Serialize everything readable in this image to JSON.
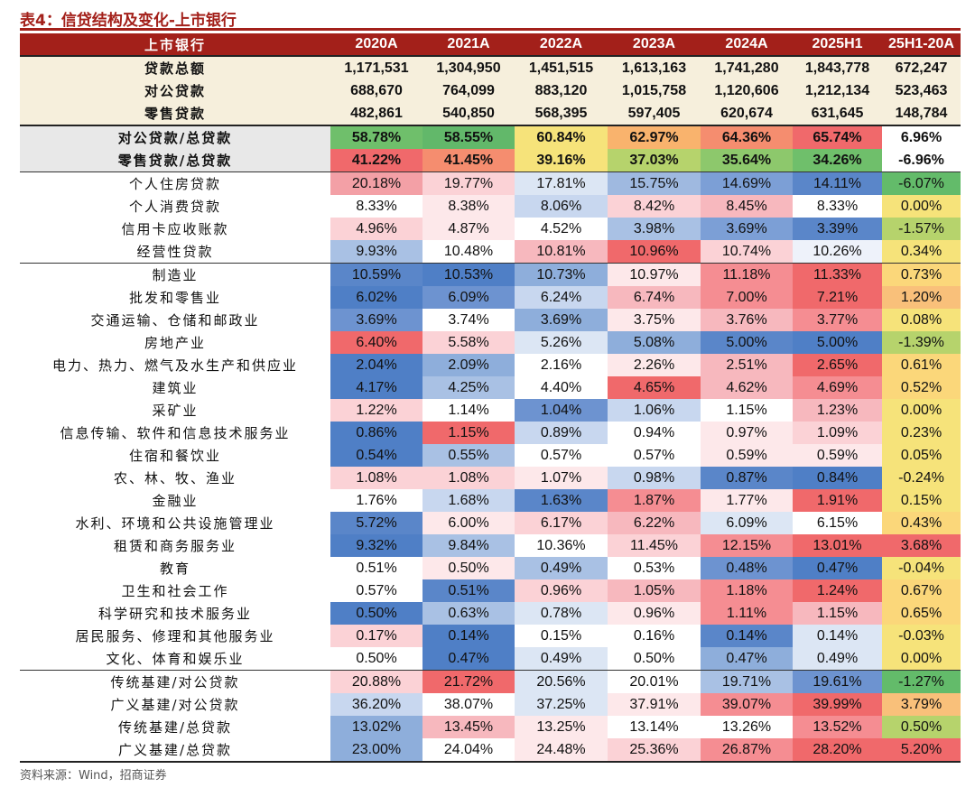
{
  "title": "表4：信贷结构及变化-上市银行",
  "source": "资料来源：Wind，招商证券",
  "columns": [
    "上市银行",
    "2020A",
    "2021A",
    "2022A",
    "2023A",
    "2024A",
    "2025H1",
    "25H1-20A"
  ],
  "colors": {
    "header_bg": "#a3201a",
    "cream": "#f6efdc",
    "label_grey": "#e8e8e8"
  },
  "rows": [
    {
      "label": "贷款总额",
      "group": "cream",
      "values": [
        "1,171,531",
        "1,304,950",
        "1,451,515",
        "1,613,163",
        "1,741,280",
        "1,843,778",
        "672,247"
      ],
      "colors": [
        "#f6efdc",
        "#f6efdc",
        "#f6efdc",
        "#f6efdc",
        "#f6efdc",
        "#f6efdc",
        "#f6efdc"
      ]
    },
    {
      "label": "对公贷款",
      "group": "cream",
      "values": [
        "688,670",
        "764,099",
        "883,120",
        "1,015,758",
        "1,120,606",
        "1,212,134",
        "523,463"
      ],
      "colors": [
        "#f6efdc",
        "#f6efdc",
        "#f6efdc",
        "#f6efdc",
        "#f6efdc",
        "#f6efdc",
        "#f6efdc"
      ]
    },
    {
      "label": "零售贷款",
      "group": "cream",
      "values": [
        "482,861",
        "540,850",
        "568,395",
        "597,405",
        "620,674",
        "631,645",
        "148,784"
      ],
      "colors": [
        "#f6efdc",
        "#f6efdc",
        "#f6efdc",
        "#f6efdc",
        "#f6efdc",
        "#f6efdc",
        "#f6efdc"
      ]
    },
    {
      "label": "对公贷款/总贷款",
      "group": "grey",
      "values": [
        "58.78%",
        "58.55%",
        "60.84%",
        "62.97%",
        "64.36%",
        "65.74%",
        "6.96%"
      ],
      "colors": [
        "#6fbf6b",
        "#62b86a",
        "#f6e37a",
        "#f9b36d",
        "#f58d6f",
        "#f0696b",
        "#ffffff"
      ]
    },
    {
      "label": "零售贷款/总贷款",
      "group": "grey",
      "values": [
        "41.22%",
        "41.45%",
        "39.16%",
        "37.03%",
        "35.64%",
        "34.26%",
        "-6.96%"
      ],
      "colors": [
        "#f0696b",
        "#f58d6f",
        "#f6e37a",
        "#b6d36c",
        "#8dc86c",
        "#6fbf6b",
        "#ffffff"
      ]
    },
    {
      "label": "个人住房贷款",
      "group": "retail",
      "values": [
        "20.18%",
        "19.77%",
        "17.81%",
        "15.75%",
        "14.69%",
        "14.11%",
        "-6.07%"
      ],
      "colors": [
        "#f3a0a6",
        "#fbd2d6",
        "#dce6f4",
        "#9fb9e0",
        "#7c9fd6",
        "#5a86c9",
        "#63bb6a"
      ]
    },
    {
      "label": "个人消费贷款",
      "group": "retail",
      "values": [
        "8.33%",
        "8.38%",
        "8.06%",
        "8.42%",
        "8.45%",
        "8.33%",
        "0.00%"
      ],
      "colors": [
        "#ffffff",
        "#fde8ea",
        "#c8d7ef",
        "#fbd2d6",
        "#f7b8be",
        "#ffffff",
        "#f6e37a"
      ]
    },
    {
      "label": "信用卡应收账款",
      "group": "retail",
      "values": [
        "4.96%",
        "4.87%",
        "4.52%",
        "3.98%",
        "3.69%",
        "3.39%",
        "-1.57%"
      ],
      "colors": [
        "#fbd2d6",
        "#fde8ea",
        "#ffffff",
        "#a9c1e4",
        "#7c9fd6",
        "#5a86c9",
        "#b6d36c"
      ]
    },
    {
      "label": "经营性贷款",
      "group": "retail",
      "values": [
        "9.93%",
        "10.48%",
        "10.81%",
        "10.96%",
        "10.74%",
        "10.26%",
        "0.34%"
      ],
      "colors": [
        "#a9c1e4",
        "#ffffff",
        "#f7b8be",
        "#f0696b",
        "#fbd2d6",
        "#eef2fa",
        "#f6e37a"
      ]
    },
    {
      "label": "制造业",
      "group": "corp",
      "values": [
        "10.59%",
        "10.53%",
        "10.73%",
        "10.97%",
        "11.18%",
        "11.33%",
        "0.73%"
      ],
      "colors": [
        "#5a86c9",
        "#4f7fc6",
        "#8eaedb",
        "#fde8ea",
        "#f58d92",
        "#f0696b",
        "#fbd77a"
      ]
    },
    {
      "label": "批发和零售业",
      "group": "corp",
      "values": [
        "6.02%",
        "6.09%",
        "6.24%",
        "6.74%",
        "7.00%",
        "7.21%",
        "1.20%"
      ],
      "colors": [
        "#4f7fc6",
        "#6d93d0",
        "#c8d7ef",
        "#f7b8be",
        "#f58d92",
        "#f0696b",
        "#f9c07a"
      ]
    },
    {
      "label": "交通运输、仓储和邮政业",
      "group": "corp",
      "values": [
        "3.69%",
        "3.74%",
        "3.69%",
        "3.75%",
        "3.76%",
        "3.77%",
        "0.08%"
      ],
      "colors": [
        "#6d93d0",
        "#ffffff",
        "#8eaedb",
        "#fde8ea",
        "#f7b8be",
        "#f58d92",
        "#f6e37a"
      ]
    },
    {
      "label": "房地产业",
      "group": "corp",
      "values": [
        "6.40%",
        "5.58%",
        "5.26%",
        "5.08%",
        "5.00%",
        "5.00%",
        "-1.39%"
      ],
      "colors": [
        "#f0696b",
        "#fbd2d6",
        "#dce6f4",
        "#8eaedb",
        "#5a86c9",
        "#4f7fc6",
        "#b6d36c"
      ]
    },
    {
      "label": "电力、热力、燃气及水生产和供应业",
      "group": "corp",
      "values": [
        "2.04%",
        "2.09%",
        "2.16%",
        "2.26%",
        "2.51%",
        "2.65%",
        "0.61%"
      ],
      "colors": [
        "#4f7fc6",
        "#8eaedb",
        "#ffffff",
        "#fde8ea",
        "#f7b8be",
        "#f0696b",
        "#fbd77a"
      ]
    },
    {
      "label": "建筑业",
      "group": "corp",
      "values": [
        "4.17%",
        "4.25%",
        "4.40%",
        "4.65%",
        "4.62%",
        "4.69%",
        "0.52%"
      ],
      "colors": [
        "#4f7fc6",
        "#a9c1e4",
        "#ffffff",
        "#f0696b",
        "#f7b8be",
        "#f58d92",
        "#fbd77a"
      ]
    },
    {
      "label": "采矿业",
      "group": "corp",
      "values": [
        "1.22%",
        "1.14%",
        "1.04%",
        "1.06%",
        "1.15%",
        "1.23%",
        "0.00%"
      ],
      "colors": [
        "#fbd2d6",
        "#ffffff",
        "#6d93d0",
        "#c8d7ef",
        "#ffffff",
        "#f7b8be",
        "#f6e37a"
      ]
    },
    {
      "label": "信息传输、软件和信息技术服务业",
      "group": "corp",
      "values": [
        "0.86%",
        "1.15%",
        "0.89%",
        "0.94%",
        "0.97%",
        "1.09%",
        "0.23%"
      ],
      "colors": [
        "#4f7fc6",
        "#f0696b",
        "#c8d7ef",
        "#ffffff",
        "#fde8ea",
        "#fbd2d6",
        "#f6e37a"
      ]
    },
    {
      "label": "住宿和餐饮业",
      "group": "corp",
      "values": [
        "0.54%",
        "0.55%",
        "0.57%",
        "0.57%",
        "0.59%",
        "0.59%",
        "0.05%"
      ],
      "colors": [
        "#4f7fc6",
        "#a9c1e4",
        "#ffffff",
        "#ffffff",
        "#fde8ea",
        "#fde8ea",
        "#f6e37a"
      ]
    },
    {
      "label": "农、林、牧、渔业",
      "group": "corp",
      "values": [
        "1.08%",
        "1.08%",
        "1.07%",
        "0.98%",
        "0.87%",
        "0.84%",
        "-0.24%"
      ],
      "colors": [
        "#fbd2d6",
        "#fbd2d6",
        "#fde8ea",
        "#c8d7ef",
        "#5a86c9",
        "#4f7fc6",
        "#f6e37a"
      ]
    },
    {
      "label": "金融业",
      "group": "corp",
      "values": [
        "1.76%",
        "1.68%",
        "1.63%",
        "1.87%",
        "1.77%",
        "1.91%",
        "0.15%"
      ],
      "colors": [
        "#ffffff",
        "#c8d7ef",
        "#5a86c9",
        "#f58d92",
        "#fde8ea",
        "#f0696b",
        "#f6e37a"
      ]
    },
    {
      "label": "水利、环境和公共设施管理业",
      "group": "corp",
      "values": [
        "5.72%",
        "6.00%",
        "6.17%",
        "6.22%",
        "6.09%",
        "6.15%",
        "0.43%"
      ],
      "colors": [
        "#5a86c9",
        "#fde8ea",
        "#fbd2d6",
        "#f7b8be",
        "#dce6f4",
        "#ffffff",
        "#fbd77a"
      ]
    },
    {
      "label": "租赁和商务服务业",
      "group": "corp",
      "values": [
        "9.32%",
        "9.84%",
        "10.36%",
        "11.45%",
        "12.15%",
        "13.01%",
        "3.68%"
      ],
      "colors": [
        "#4f7fc6",
        "#a9c1e4",
        "#ffffff",
        "#fbd2d6",
        "#f58d92",
        "#f0696b",
        "#f0696b"
      ]
    },
    {
      "label": "教育",
      "group": "corp",
      "values": [
        "0.51%",
        "0.50%",
        "0.49%",
        "0.53%",
        "0.48%",
        "0.47%",
        "-0.04%"
      ],
      "colors": [
        "#ffffff",
        "#fde8ea",
        "#a9c1e4",
        "#ffffff",
        "#6d93d0",
        "#4f7fc6",
        "#f6e37a"
      ]
    },
    {
      "label": "卫生和社会工作",
      "group": "corp",
      "values": [
        "0.57%",
        "0.51%",
        "0.96%",
        "1.05%",
        "1.18%",
        "1.24%",
        "0.67%"
      ],
      "colors": [
        "#ffffff",
        "#5a86c9",
        "#fbd2d6",
        "#f7b8be",
        "#f58d92",
        "#f0696b",
        "#fbd77a"
      ]
    },
    {
      "label": "科学研究和技术服务业",
      "group": "corp",
      "values": [
        "0.50%",
        "0.63%",
        "0.78%",
        "0.96%",
        "1.11%",
        "1.15%",
        "0.65%"
      ],
      "colors": [
        "#4f7fc6",
        "#a9c1e4",
        "#dce6f4",
        "#fde8ea",
        "#f58d92",
        "#f7b8be",
        "#fbd77a"
      ]
    },
    {
      "label": "居民服务、修理和其他服务业",
      "group": "corp",
      "values": [
        "0.17%",
        "0.14%",
        "0.15%",
        "0.16%",
        "0.14%",
        "0.14%",
        "-0.03%"
      ],
      "colors": [
        "#fbd2d6",
        "#4f7fc6",
        "#ffffff",
        "#ffffff",
        "#5a86c9",
        "#dce6f4",
        "#f6e37a"
      ]
    },
    {
      "label": "文化、体育和娱乐业",
      "group": "corp",
      "values": [
        "0.50%",
        "0.47%",
        "0.49%",
        "0.50%",
        "0.47%",
        "0.49%",
        "0.00%"
      ],
      "colors": [
        "#ffffff",
        "#4f7fc6",
        "#dce6f4",
        "#ffffff",
        "#8eaedb",
        "#dce6f4",
        "#f6e37a"
      ]
    },
    {
      "label": "传统基建/对公贷款",
      "group": "infra",
      "values": [
        "20.88%",
        "21.72%",
        "20.56%",
        "20.01%",
        "19.71%",
        "19.61%",
        "-1.27%"
      ],
      "colors": [
        "#fbd2d6",
        "#f0696b",
        "#dce6f4",
        "#ffffff",
        "#a9c1e4",
        "#6d93d0",
        "#63bb6a"
      ]
    },
    {
      "label": "广义基建/对公贷款",
      "group": "infra",
      "values": [
        "36.20%",
        "38.07%",
        "37.25%",
        "37.91%",
        "39.07%",
        "39.99%",
        "3.79%"
      ],
      "colors": [
        "#c8d7ef",
        "#ffffff",
        "#dce6f4",
        "#fde8ea",
        "#f58d92",
        "#f0696b",
        "#f9c07a"
      ]
    },
    {
      "label": "传统基建/总贷款",
      "group": "infra",
      "values": [
        "13.02%",
        "13.45%",
        "13.25%",
        "13.14%",
        "13.26%",
        "13.52%",
        "0.50%"
      ],
      "colors": [
        "#8eaedb",
        "#f7b8be",
        "#fde8ea",
        "#ffffff",
        "#ffffff",
        "#f58d92",
        "#b6d36c"
      ]
    },
    {
      "label": "广义基建/总贷款",
      "group": "infra",
      "values": [
        "23.00%",
        "24.04%",
        "24.48%",
        "25.36%",
        "26.87%",
        "28.20%",
        "5.20%"
      ],
      "colors": [
        "#8eaedb",
        "#ffffff",
        "#fde8ea",
        "#fbd2d6",
        "#f58d92",
        "#f0696b",
        "#f0696b"
      ]
    }
  ]
}
